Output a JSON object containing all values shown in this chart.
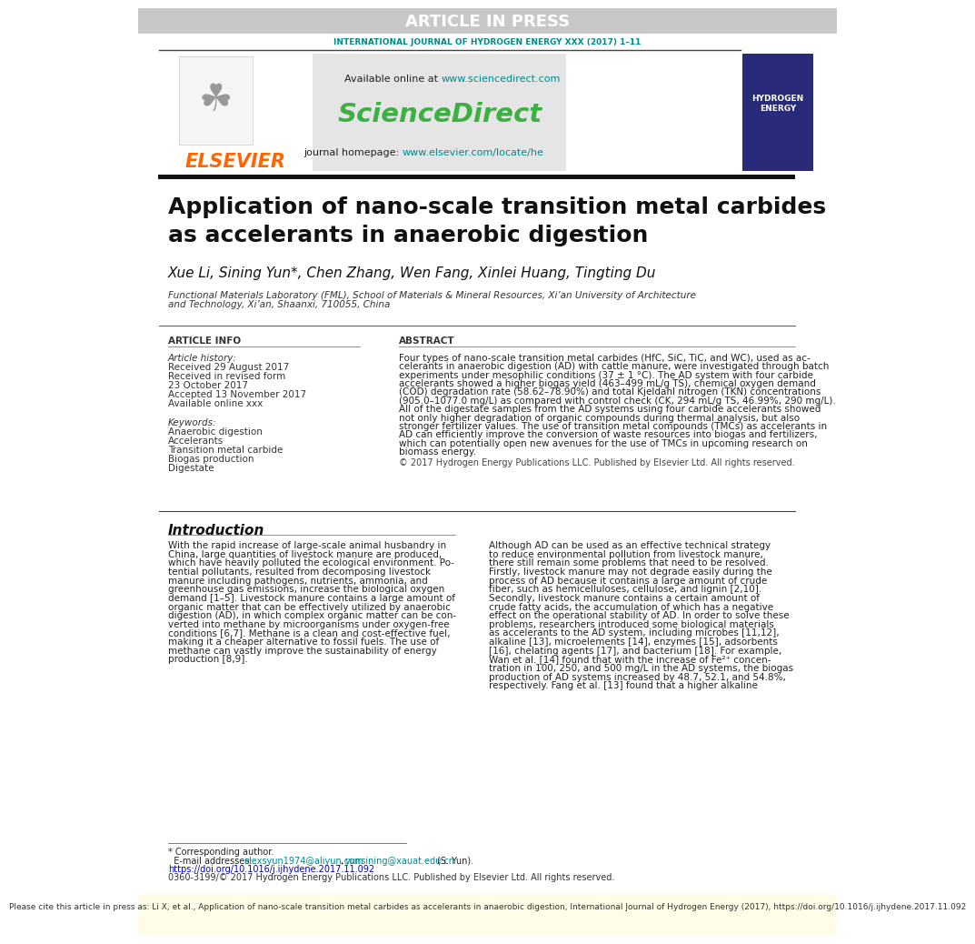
{
  "page_width": 9.92,
  "page_height": 13.23,
  "bg_color": "#ffffff",
  "header_bar_color": "#c8c8c8",
  "header_bar_text": "ARTICLE IN PRESS",
  "header_bar_text_color": "#ffffff",
  "journal_line_text": "INTERNATIONAL JOURNAL OF HYDROGEN ENERGY XXX (2017) 1–11",
  "available_online_text": "Available online at ",
  "sciencedirect_url": "www.sciencedirect.com",
  "sciencedirect_text": "ScienceDirect",
  "sciencedirect_color": "#3cb043",
  "journal_homepage_text": "journal homepage: ",
  "journal_homepage_url": "www.elsevier.com/locate/he",
  "elsevier_text": "ELSEVIER",
  "elsevier_color": "#ff6600",
  "title_line1": "Application of nano-scale transition metal carbides",
  "title_line2": "as accelerants in anaerobic digestion",
  "title_font_size": 18,
  "authors": "Xue Li, Sining Yun*, Chen Zhang, Wen Fang, Xinlei Huang, Tingting Du",
  "affiliation_line1": "Functional Materials Laboratory (FML), School of Materials & Mineral Resources, Xi’an University of Architecture",
  "affiliation_line2": "and Technology, Xi’an, Shaanxi, 710055, China",
  "article_info_header": "ARTICLE INFO",
  "abstract_header": "ABSTRACT",
  "article_history_label": "Article history:",
  "received_text": "Received 29 August 2017",
  "received_revised_line1": "Received in revised form",
  "received_revised_line2": "23 October 2017",
  "accepted_text": "Accepted 13 November 2017",
  "available_online_xxx": "Available online xxx",
  "keywords_label": "Keywords:",
  "keywords": [
    "Anaerobic digestion",
    "Accelerants",
    "Transition metal carbide",
    "Biogas production",
    "Digestate"
  ],
  "copyright_text": "© 2017 Hydrogen Energy Publications LLC. Published by Elsevier Ltd. All rights reserved.",
  "intro_heading": "Introduction",
  "footnote_corresponding": "* Corresponding author.",
  "footnote_doi": "https://doi.org/10.1016/j.ijhydene.2017.11.092",
  "footnote_issn": "0360-3199/© 2017 Hydrogen Energy Publications LLC. Published by Elsevier Ltd. All rights reserved.",
  "bottom_bar_text": "Please cite this article in press as: Li X, et al., Application of nano-scale transition metal carbides as accelerants in anaerobic digestion, International Journal of Hydrogen Energy (2017), https://doi.org/10.1016/j.ijhydene.2017.11.092",
  "teal_color": "#008b8b",
  "blue_link_color": "#0000cc"
}
